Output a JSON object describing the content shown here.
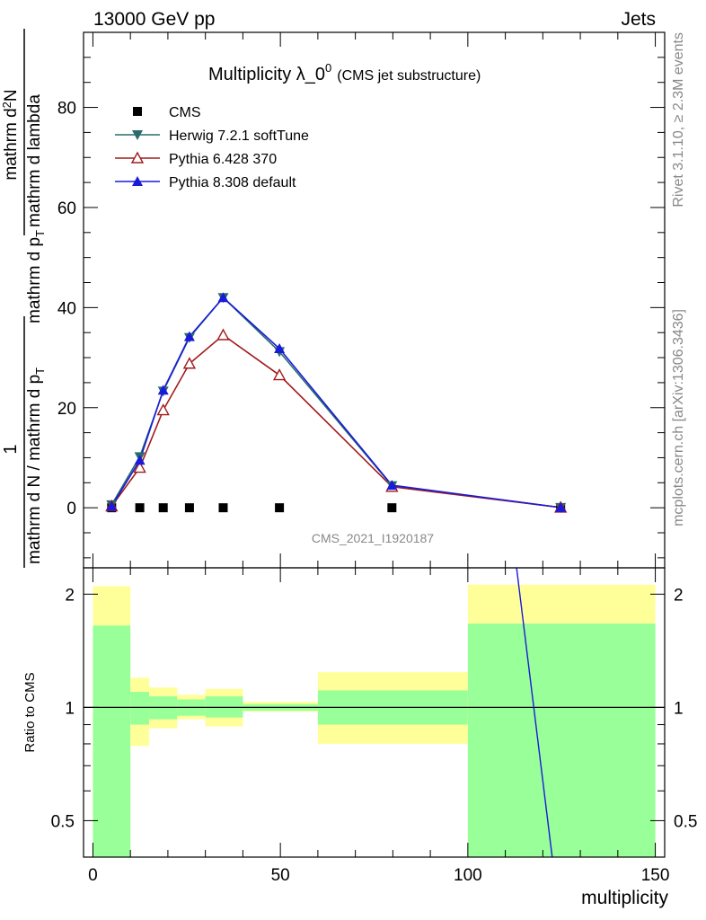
{
  "header": {
    "left": "13000 GeV pp",
    "right": "Jets"
  },
  "side": {
    "rivet": "Rivet 3.1.10, ≥ 2.3M events",
    "mcplots": "mcplots.cern.ch [arXiv:1306.3436]"
  },
  "chart_data": [
    {
      "type": "line",
      "title_main": "Multiplicity λ_0",
      "title_sup": "0",
      "title_sub": "(CMS jet substructure)",
      "ylabel": {
        "numerator_1": "1",
        "denominator_1": "mathrm d N / mathrm d p",
        "denominator_1_sub": "T",
        "numerator_2": "mathrm d",
        "numerator_2_sup": "2",
        "numerator_2_tail": "N",
        "denominator_2": "mathrm d p",
        "denominator_2_sub": "T",
        "denominator_2_tail": "mathrm d lambda"
      },
      "watermark": "CMS_2021_I1920187",
      "xlim": [
        -2.5,
        152.5
      ],
      "ylim": [
        -12,
        95
      ],
      "yticks": [
        0,
        20,
        40,
        60,
        80
      ],
      "legend_position": "top-left",
      "series": [
        {
          "name": "CMS",
          "color": "#000000",
          "marker": "square",
          "x": [
            5,
            12.5,
            18.75,
            25.75,
            34.75,
            49.75,
            79.75,
            124.75
          ],
          "y": [
            0.0,
            0.0,
            0.0,
            0.0,
            0.0,
            0.0,
            0.0,
            0.0
          ]
        },
        {
          "name": "Herwig 7.2.1 softTune",
          "color": "#2a6b6b",
          "marker": "triangle-down",
          "x": [
            5,
            12.5,
            18.75,
            25.75,
            34.75,
            49.75,
            79.75,
            124.75
          ],
          "y": [
            0.6,
            10.2,
            23.3,
            34.0,
            42.0,
            31.2,
            4.4,
            0.05
          ]
        },
        {
          "name": "Pythia 6.428 370",
          "color": "#a01c1c",
          "marker": "triangle-open",
          "x": [
            5,
            12.5,
            18.75,
            25.75,
            34.75,
            49.75,
            79.75,
            124.75
          ],
          "y": [
            0.3,
            8.0,
            19.5,
            28.8,
            34.5,
            26.5,
            4.2,
            0.05
          ]
        },
        {
          "name": "Pythia 8.308 default",
          "color": "#1a1adb",
          "marker": "triangle-up",
          "x": [
            5,
            12.5,
            18.75,
            25.75,
            34.75,
            49.75,
            79.75,
            124.75
          ],
          "y": [
            0.3,
            9.5,
            23.5,
            34.2,
            42.0,
            31.8,
            4.5,
            0.05
          ]
        }
      ]
    },
    {
      "type": "area",
      "ylabel": "Ratio to CMS",
      "xlabel": "multiplicity",
      "xlim": [
        -2.5,
        152.5
      ],
      "ylim": [
        0.4,
        2.35
      ],
      "yscale": "log",
      "yticks": [
        0.5,
        1,
        2
      ],
      "xticks": [
        0,
        50,
        100,
        150
      ],
      "bands": [
        {
          "x": [
            0,
            10
          ],
          "inner": [
            0.38,
            1.65
          ],
          "outer": [
            0.36,
            2.1
          ]
        },
        {
          "x": [
            10,
            15
          ],
          "inner": [
            0.9,
            1.1
          ],
          "outer": [
            0.79,
            1.2
          ]
        },
        {
          "x": [
            15,
            22.5
          ],
          "inner": [
            0.93,
            1.07
          ],
          "outer": [
            0.88,
            1.13
          ]
        },
        {
          "x": [
            22.5,
            30
          ],
          "inner": [
            0.95,
            1.05
          ],
          "outer": [
            0.93,
            1.08
          ]
        },
        {
          "x": [
            30,
            40
          ],
          "inner": [
            0.94,
            1.07
          ],
          "outer": [
            0.89,
            1.12
          ]
        },
        {
          "x": [
            40,
            60
          ],
          "inner": [
            0.98,
            1.02
          ],
          "outer": [
            0.975,
            1.035
          ]
        },
        {
          "x": [
            60,
            100
          ],
          "inner": [
            0.9,
            1.11
          ],
          "outer": [
            0.8,
            1.24
          ]
        },
        {
          "x": [
            100,
            150
          ],
          "inner": [
            0.36,
            1.67
          ],
          "outer": [
            0.36,
            2.12
          ]
        }
      ],
      "series": [
        {
          "name": "Pythia 8.308 default",
          "color": "#1a1adb",
          "x": [
            113.0,
            122.5
          ],
          "y": [
            2.35,
            0.4
          ]
        }
      ],
      "reference": 1.0
    }
  ],
  "colors": {
    "band_inner": "#99ff99",
    "band_outer": "#ffff99"
  }
}
